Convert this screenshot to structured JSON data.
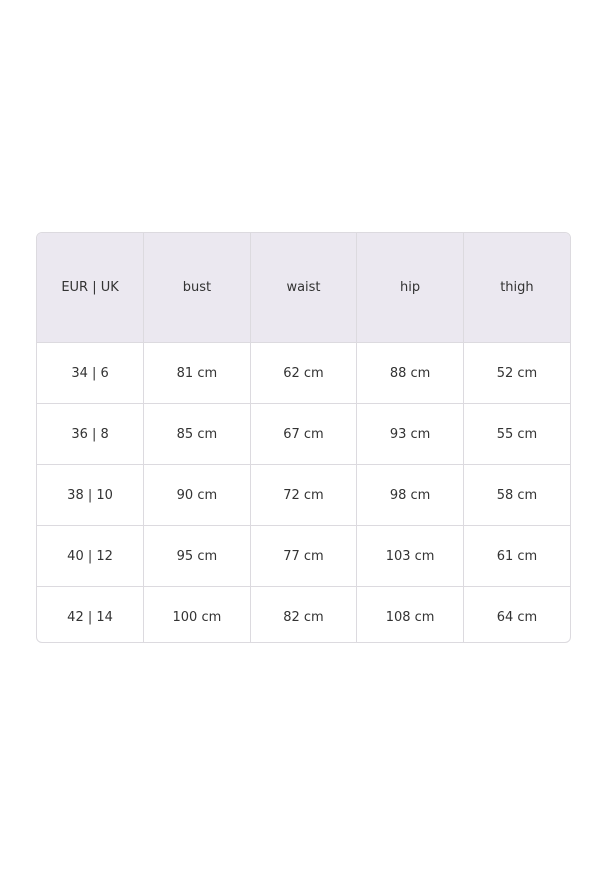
{
  "table": {
    "header": [
      "EUR | UK",
      "bust",
      "waist",
      "hip",
      "thigh"
    ],
    "rows": [
      [
        "34 | 6",
        "81 cm",
        "62 cm",
        "88 cm",
        "52 cm"
      ],
      [
        "36 | 8",
        "85 cm",
        "67 cm",
        "93 cm",
        "55 cm"
      ],
      [
        "38 | 10",
        "90 cm",
        "72 cm",
        "98 cm",
        "58 cm"
      ],
      [
        "40 | 12",
        "95 cm",
        "77 cm",
        "103 cm",
        "61 cm"
      ],
      [
        "42 | 14",
        "100 cm",
        "82 cm",
        "108 cm",
        "64 cm"
      ]
    ]
  }
}
